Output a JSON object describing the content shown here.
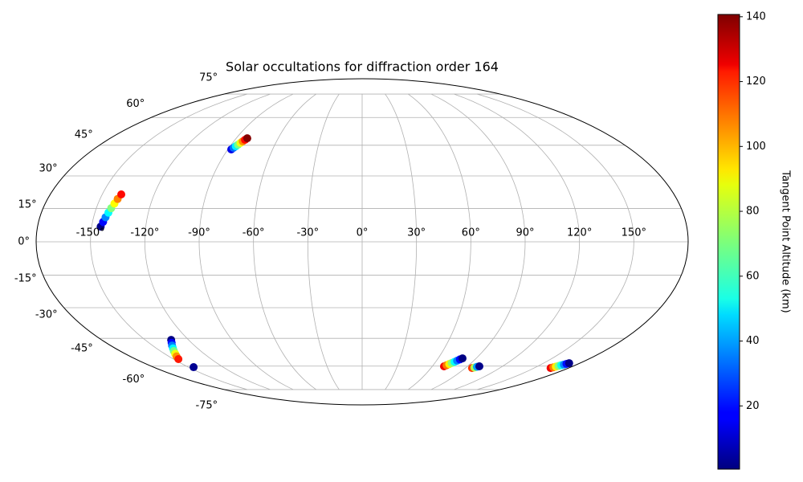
{
  "chart_data": {
    "type": "mollweide-scatter",
    "title": "Solar occultations for diffraction order 164",
    "colorbar_label": "Tangent Point Altitude (km)",
    "colormap": "jet",
    "clim": [
      0.5,
      140.7
    ],
    "cticks": [
      20,
      40,
      60,
      80,
      100,
      120,
      140
    ],
    "grid": true,
    "xticks": [
      {
        "value": -150,
        "label": "-150°"
      },
      {
        "value": -120,
        "label": "-120°"
      },
      {
        "value": -90,
        "label": "-90°"
      },
      {
        "value": -60,
        "label": "-60°"
      },
      {
        "value": -30,
        "label": "-30°"
      },
      {
        "value": 0,
        "label": "0°"
      },
      {
        "value": 30,
        "label": "30°"
      },
      {
        "value": 60,
        "label": "60°"
      },
      {
        "value": 90,
        "label": "90°"
      },
      {
        "value": 120,
        "label": "120°"
      },
      {
        "value": 150,
        "label": "150°"
      }
    ],
    "yticks": [
      {
        "value": -75,
        "label": "-75°"
      },
      {
        "value": -60,
        "label": "-60°"
      },
      {
        "value": -45,
        "label": "-45°"
      },
      {
        "value": -30,
        "label": "-30°"
      },
      {
        "value": -15,
        "label": "-15°"
      },
      {
        "value": 0,
        "label": "0°"
      },
      {
        "value": 15,
        "label": "15°"
      },
      {
        "value": 30,
        "label": "30°"
      },
      {
        "value": 45,
        "label": "45°"
      },
      {
        "value": 60,
        "label": "60°"
      },
      {
        "value": 75,
        "label": "75°"
      }
    ],
    "x": [
      -145,
      -144.1,
      -143.3,
      -142.4,
      -141.6,
      -140.7,
      -139.9,
      -139,
      -87.7,
      -86.9,
      -86.1,
      -85.3,
      -84.5,
      -83.7,
      -82.9,
      -82.1,
      -132,
      -134,
      -136,
      -138,
      -140,
      -142,
      -144,
      -146,
      -145.5,
      70,
      71.3,
      72.6,
      73.9,
      75.3,
      76.6,
      77.9,
      79.2,
      95.8,
      97.3,
      98.7,
      100.2,
      164.3,
      165.3,
      166.2,
      167.2,
      168.2,
      169.2,
      170.1,
      171.1
    ],
    "y": [
      6.8,
      8.9,
      11.0,
      13.1,
      15.1,
      17.2,
      19.3,
      21.4,
      42.9,
      43.7,
      44.5,
      45.3,
      46.2,
      47.0,
      47.8,
      48.6,
      -45.8,
      -47.3,
      -48.7,
      -50.2,
      -51.6,
      -53.1,
      -54.5,
      -56.0,
      -60.6,
      -60.1,
      -59.5,
      -58.8,
      -58.2,
      -57.5,
      -56.9,
      -56.2,
      -55.6,
      -61.1,
      -60.8,
      -60.4,
      -60.1,
      -61.1,
      -60.7,
      -60.3,
      -59.9,
      -59.5,
      -59.1,
      -58.7,
      -58.3
    ],
    "values": [
      2,
      19,
      36,
      53,
      71,
      88,
      105,
      122,
      15,
      33,
      51,
      69,
      86,
      104,
      122,
      140,
      1,
      18,
      35,
      52,
      69,
      86,
      103,
      120,
      3,
      125,
      107,
      90,
      72,
      54,
      36,
      19,
      1,
      115,
      77,
      40,
      2,
      125,
      107,
      90,
      72,
      55,
      37,
      20,
      2
    ]
  }
}
